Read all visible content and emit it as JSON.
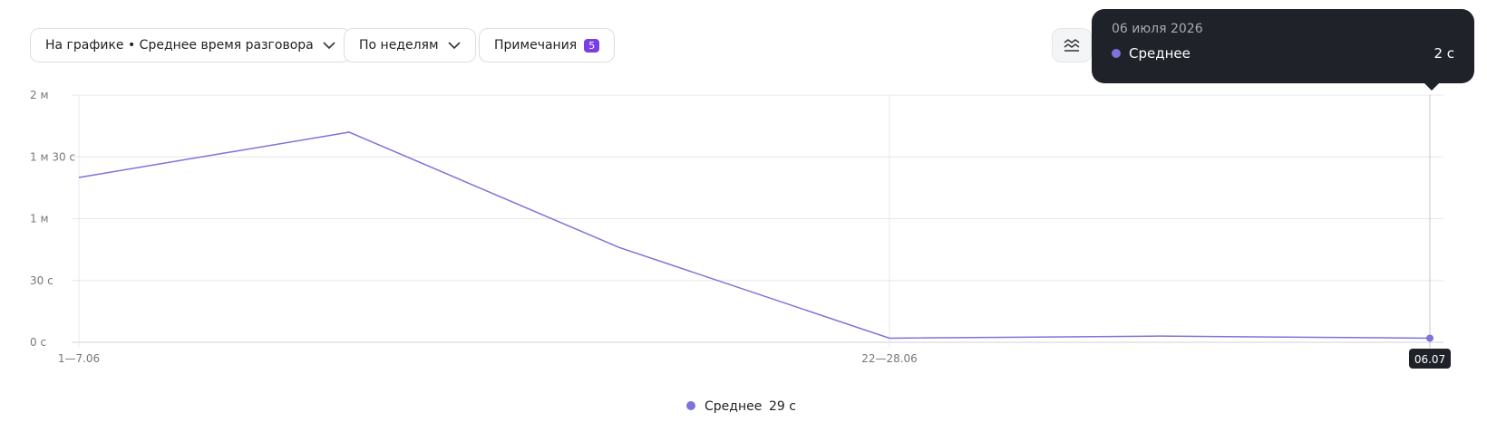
{
  "toolbar": {
    "metric": "На графике • Среднее время разговора",
    "period": "По неделям",
    "notes": "Примечания",
    "notes_count": 5
  },
  "chart_data": {
    "type": "line",
    "categories": [
      "1—7.06",
      null,
      null,
      "22—28.06",
      null,
      "06.07"
    ],
    "series": [
      {
        "name": "Среднее",
        "color": "#7d73d8",
        "values": [
          80,
          102,
          46,
          2,
          3,
          2
        ],
        "value_labels": [
          null,
          null,
          null,
          null,
          null,
          "2 с"
        ]
      }
    ],
    "ylim": [
      0,
      120
    ],
    "yticks": [
      {
        "value": 0,
        "label": "0 с"
      },
      {
        "value": 30,
        "label": "30 с"
      },
      {
        "value": 60,
        "label": "1 м"
      },
      {
        "value": 90,
        "label": "1 м 30 с"
      },
      {
        "value": 120,
        "label": "2 м"
      }
    ],
    "grid": true,
    "tooltip_title": "06 июля 2026",
    "legend_summary": "29 с"
  }
}
